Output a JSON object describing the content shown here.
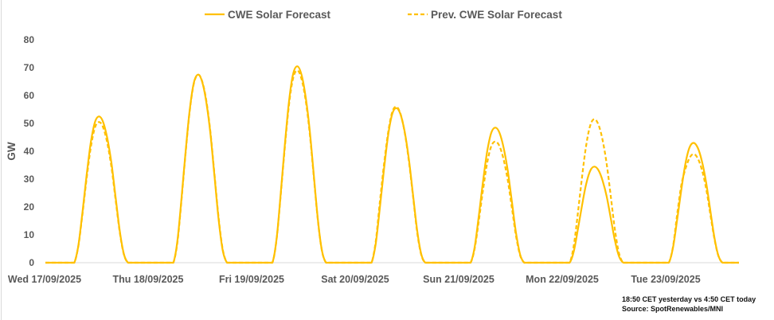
{
  "chart_data": {
    "type": "line",
    "ylabel": "GW",
    "ylim": [
      0,
      80
    ],
    "yticks": [
      0,
      10,
      20,
      30,
      40,
      50,
      60,
      70,
      80
    ],
    "x_tick_labels": [
      "Wed 17/09/2025",
      "Thu 18/09/2025",
      "Fri 19/09/2025",
      "Sat 20/09/2025",
      "Sun 21/09/2025",
      "Mon 22/09/2025",
      "Tue 23/09/2025"
    ],
    "x_resolution": "hourly",
    "grid": false,
    "legend_position": "top",
    "colors": {
      "line": "#FFC000",
      "axis": "#D9D9D9",
      "text": "#595959"
    },
    "series": [
      {
        "name": "CWE Solar Forecast",
        "style": "solid",
        "days": [
          [
            0,
            0,
            0,
            0,
            0,
            0,
            0,
            0,
            6.3,
            18.4,
            31.5,
            43.1,
            50.4,
            52.5,
            50.4,
            44.6,
            35.7,
            23.6,
            11.6,
            3.2,
            0,
            0,
            0,
            0
          ],
          [
            0,
            0,
            0,
            0,
            0,
            0,
            0,
            0,
            8.1,
            23.6,
            40.5,
            55.4,
            64.8,
            67.5,
            64.8,
            57.4,
            45.9,
            30.4,
            14.9,
            4.1,
            0,
            0,
            0,
            0
          ],
          [
            0,
            0,
            0,
            0,
            0,
            0,
            0,
            0,
            8.5,
            24.7,
            42.3,
            57.8,
            67.7,
            70.5,
            67.7,
            59.9,
            47.9,
            31.7,
            15.5,
            4.2,
            0,
            0,
            0,
            0
          ],
          [
            0,
            0,
            0,
            0,
            0,
            0,
            0,
            0,
            6.7,
            19.4,
            33.3,
            45.5,
            53.3,
            55.5,
            53.3,
            47.2,
            37.7,
            25.0,
            12.2,
            3.3,
            0,
            0,
            0,
            0
          ],
          [
            0,
            0,
            0,
            0,
            0,
            0,
            0,
            0,
            5.8,
            17.0,
            29.1,
            39.8,
            46.6,
            48.5,
            46.6,
            41.2,
            33.0,
            21.8,
            10.7,
            2.9,
            0,
            0,
            0,
            0
          ],
          [
            0,
            0,
            0,
            0,
            0,
            0,
            0,
            0,
            4.1,
            12.1,
            20.7,
            28.3,
            33.1,
            34.5,
            33.1,
            29.3,
            23.5,
            15.5,
            7.6,
            2.1,
            0,
            0,
            0,
            0
          ],
          [
            0,
            0,
            0,
            0,
            0,
            0,
            0,
            0,
            5.2,
            15.1,
            25.8,
            35.3,
            41.3,
            43.0,
            41.3,
            36.6,
            29.2,
            19.4,
            9.5,
            2.6,
            0,
            0,
            0,
            0
          ]
        ]
      },
      {
        "name": "Prev. CWE Solar Forecast",
        "style": "dashed",
        "days": [
          [
            0,
            0,
            0,
            0,
            0,
            0,
            0,
            0,
            6.1,
            17.7,
            30.3,
            41.4,
            48.5,
            50.5,
            48.5,
            42.9,
            34.3,
            22.7,
            11.1,
            3.0,
            0,
            0,
            0,
            0
          ],
          [
            0,
            0,
            0,
            0,
            0,
            0,
            0,
            0,
            7.5,
            23.0,
            40.0,
            55.0,
            64.5,
            67.5,
            65.0,
            58.0,
            46.5,
            31.0,
            15.5,
            4.5,
            0,
            0,
            0,
            0
          ],
          [
            0,
            0,
            0,
            0,
            0,
            0,
            0,
            0,
            8.3,
            24.2,
            41.4,
            56.6,
            66.2,
            69.0,
            66.2,
            58.7,
            46.9,
            31.1,
            15.2,
            4.1,
            0,
            0,
            0,
            0
          ],
          [
            0,
            0,
            0,
            0,
            0,
            0,
            0,
            0,
            7.5,
            21.5,
            35.0,
            46.5,
            54.0,
            56.0,
            53.5,
            47.0,
            37.0,
            24.5,
            11.5,
            3.0,
            0,
            0,
            0,
            0
          ],
          [
            0,
            0,
            0,
            0,
            0,
            0,
            0,
            0,
            5.2,
            15.2,
            26.1,
            35.7,
            41.8,
            43.5,
            41.8,
            37.0,
            29.6,
            19.6,
            9.6,
            2.6,
            0,
            0,
            0,
            0
          ],
          [
            0,
            0,
            0,
            0,
            0,
            0,
            0,
            0,
            6.2,
            18.0,
            30.9,
            42.2,
            49.4,
            51.5,
            49.4,
            43.8,
            35.0,
            23.2,
            11.3,
            3.1,
            0,
            0,
            0,
            0
          ],
          [
            0,
            0,
            0,
            0,
            0,
            0,
            0,
            0,
            5.5,
            17.0,
            27.5,
            33.5,
            37.5,
            39.0,
            37.5,
            33.5,
            27.0,
            18.0,
            9.0,
            2.5,
            0,
            0,
            0,
            0
          ]
        ]
      }
    ],
    "annotations": [
      "18:50 CET yesterday vs  4:50 CET today",
      "Source: SpotRenewables/MNI"
    ]
  }
}
